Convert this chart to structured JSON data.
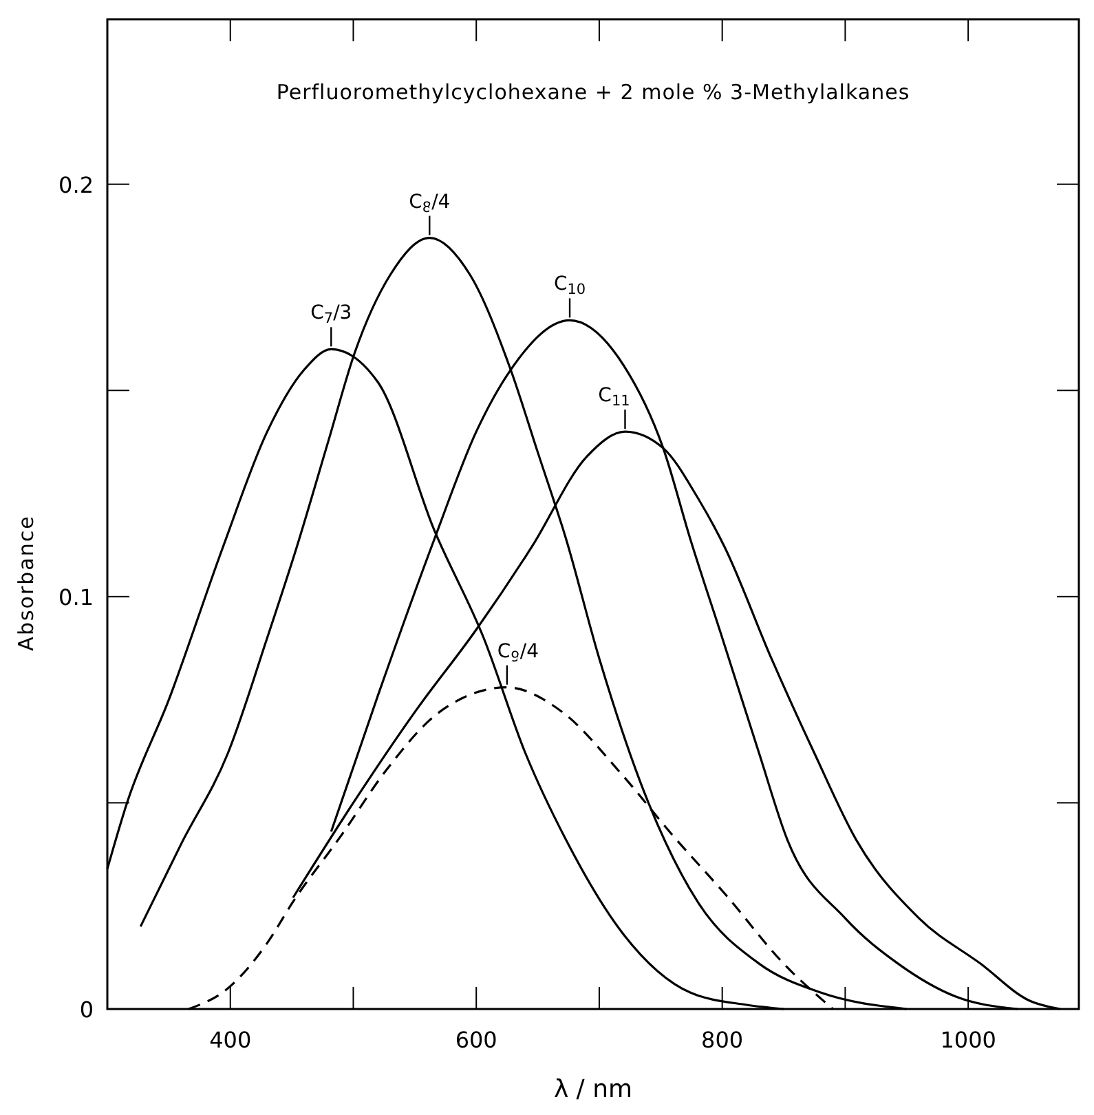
{
  "chart_data": {
    "type": "line",
    "title": "Perfluoromethylcyclohexane + 2 mole % 3-Methylalkanes",
    "xlabel": "λ / nm",
    "ylabel": "Absorbance",
    "xlim": [
      300,
      1090
    ],
    "ylim": [
      0,
      0.24
    ],
    "xticks": [
      400,
      {
        "value": 500,
        "label": null
      },
      600,
      {
        "value": 700,
        "label": null
      },
      800,
      {
        "value": 900,
        "label": null
      },
      1000
    ],
    "yticks": [
      0,
      {
        "value": 0.05,
        "label": null
      },
      0.1,
      {
        "value": 0.15,
        "label": null
      },
      0.2
    ],
    "grid": false,
    "marker": "none",
    "series": [
      {
        "name": "C$_{7}$/3",
        "color": "#000000",
        "line_style": "solid",
        "x": [
          300,
          316,
          350,
          394,
          430,
          460,
          482,
          520,
          566,
          606,
          640,
          673,
          720,
          774,
          820,
          850
        ],
        "values": [
          0.034,
          0.05,
          0.075,
          0.112,
          0.14,
          0.155,
          0.16,
          0.152,
          0.116,
          0.09,
          0.062,
          0.041,
          0.018,
          0.004,
          0.001,
          0
        ]
      },
      {
        "name": "C$_{8}$/4",
        "color": "#000000",
        "line_style": "solid",
        "x": [
          327,
          360,
          398,
          430,
          454,
          480,
          501,
          530,
          562,
          595,
          628,
          650,
          673,
          700,
          740,
          780,
          830,
          880,
          950
        ],
        "values": [
          0.02,
          0.04,
          0.062,
          0.09,
          0.112,
          0.138,
          0.159,
          0.178,
          0.187,
          0.178,
          0.155,
          0.135,
          0.114,
          0.085,
          0.05,
          0.026,
          0.011,
          0.004,
          0
        ]
      },
      {
        "name": "C$_{10}$",
        "color": "#000000",
        "line_style": "solid",
        "x": [
          482,
          520,
          566,
          600,
          628,
          676,
          720,
          752,
          774,
          800,
          830,
          853,
          900,
          943,
          990,
          1040
        ],
        "values": [
          0.043,
          0.076,
          0.114,
          0.14,
          0.155,
          0.167,
          0.156,
          0.136,
          0.114,
          0.09,
          0.062,
          0.041,
          0.022,
          0.011,
          0.003,
          0
        ]
      },
      {
        "name": "C$_{11}$",
        "color": "#000000",
        "line_style": "solid",
        "x": [
          451,
          500,
          550,
          600,
          645,
          690,
          721,
          752,
          780,
          802,
          840,
          875,
          909,
          960,
          1010,
          1050,
          1075
        ],
        "values": [
          0.027,
          0.05,
          0.072,
          0.092,
          0.112,
          0.134,
          0.14,
          0.136,
          0.124,
          0.112,
          0.085,
          0.062,
          0.041,
          0.022,
          0.011,
          0.002,
          0
        ]
      },
      {
        "name": "C$_{9}$/4",
        "color": "#000000",
        "line_style": "dashed",
        "x": [
          366,
          398,
          430,
          451,
          490,
          527,
          570,
          625,
          670,
          718,
          760,
          802,
          850,
          890
        ],
        "values": [
          0,
          0.005,
          0.016,
          0.026,
          0.042,
          0.058,
          0.072,
          0.078,
          0.072,
          0.057,
          0.042,
          0.028,
          0.011,
          0
        ]
      }
    ]
  }
}
